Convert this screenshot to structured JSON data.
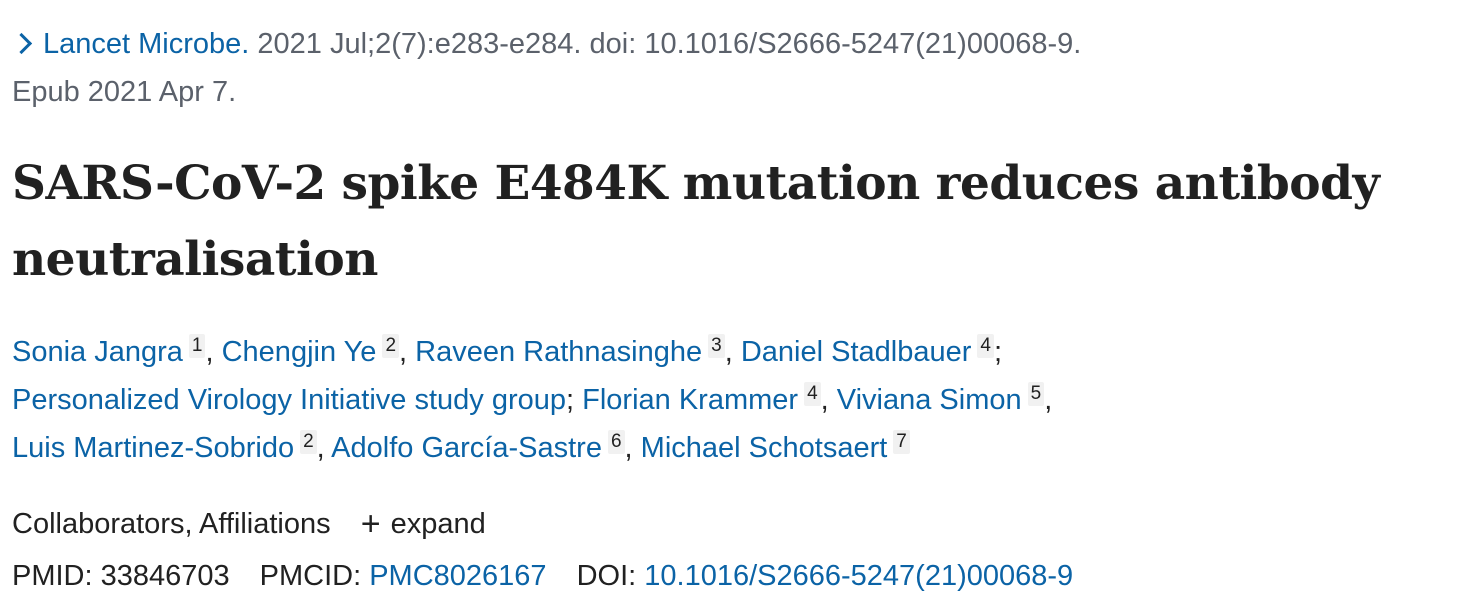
{
  "citation": {
    "journal": "Lancet Microbe.",
    "details": "2021 Jul;2(7):e283-e284. doi: 10.1016/S2666-5247(21)00068-9.",
    "epub": "Epub 2021 Apr 7.",
    "chevron_icon": "chevron-right-icon"
  },
  "article": {
    "title": "SARS-CoV-2 spike E484K mutation reduces antibody neutralisation"
  },
  "authors": [
    {
      "name": "Sonia Jangra",
      "aff": "1",
      "sep": ", "
    },
    {
      "name": "Chengjin Ye",
      "aff": "2",
      "sep": ", "
    },
    {
      "name": "Raveen Rathnasinghe",
      "aff": "3",
      "sep": ", "
    },
    {
      "name": "Daniel Stadlbauer",
      "aff": "4",
      "sep": ";"
    },
    {
      "name": "Personalized Virology Initiative study group",
      "aff": "",
      "sep": "; "
    },
    {
      "name": "Florian Krammer",
      "aff": "4",
      "sep": ", "
    },
    {
      "name": "Viviana Simon",
      "aff": "5",
      "sep": ","
    },
    {
      "name": "Luis Martinez-Sobrido",
      "aff": "2",
      "sep": ", "
    },
    {
      "name": "Adolfo García-Sastre",
      "aff": "6",
      "sep": ", "
    },
    {
      "name": "Michael Schotsaert",
      "aff": "7",
      "sep": ""
    }
  ],
  "collaborators": {
    "label": "Collaborators, Affiliations",
    "expand_symbol": "+",
    "expand_label": "expand"
  },
  "identifiers": {
    "pmid_label": "PMID:",
    "pmid": "33846703",
    "pmcid_label": "PMCID:",
    "pmcid": "PMC8026167",
    "doi_label": "DOI:",
    "doi": "10.1016/S2666-5247(21)00068-9"
  },
  "colors": {
    "link": "#0b63a6",
    "text": "#212121",
    "muted": "#5b616b"
  }
}
